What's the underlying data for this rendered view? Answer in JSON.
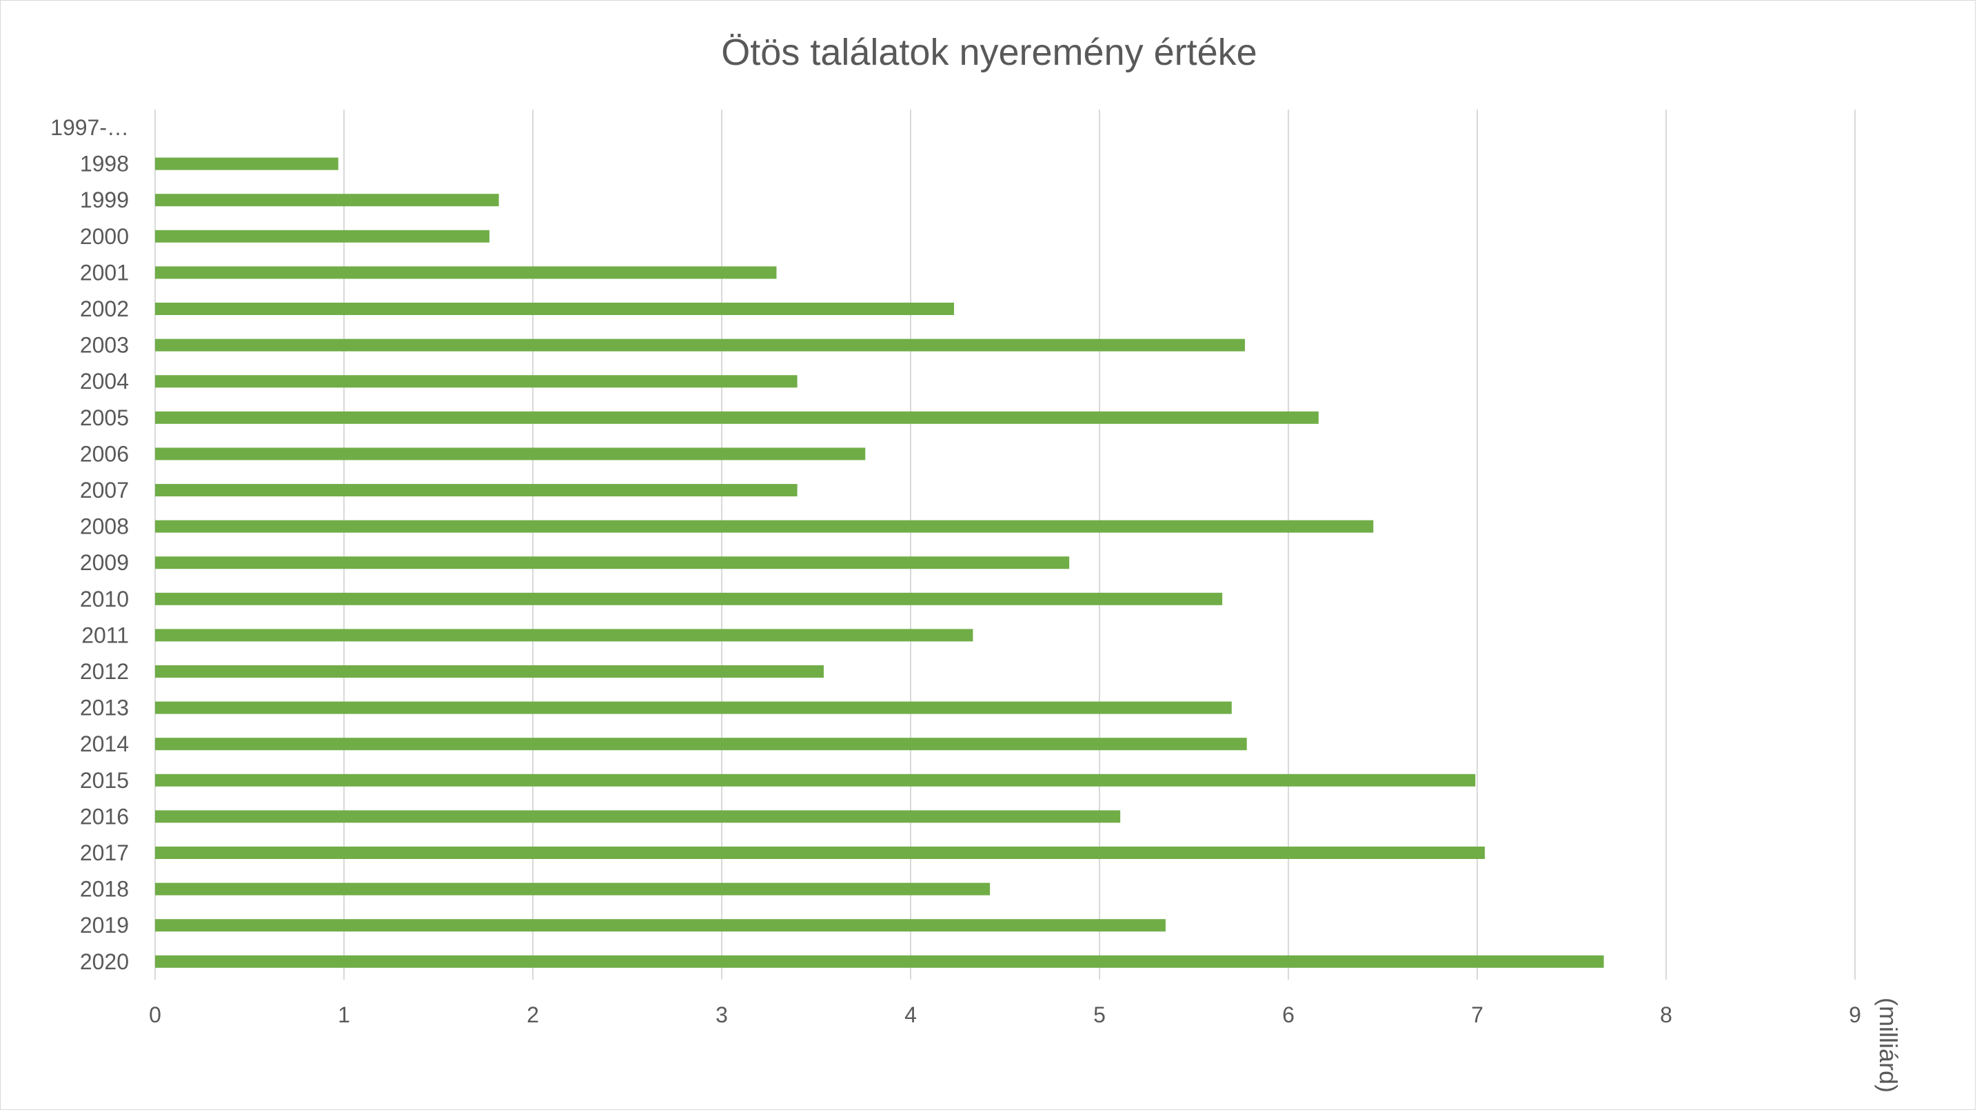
{
  "chart_data": {
    "type": "bar",
    "orientation": "horizontal",
    "title": "Ötös találatok nyeremény értéke",
    "xlabel": "(milliárd)",
    "ylabel": "",
    "xlim": [
      0,
      9
    ],
    "x_ticks": [
      "0",
      "1",
      "2",
      "3",
      "4",
      "5",
      "6",
      "7",
      "8",
      "9"
    ],
    "grid": "vertical",
    "legend": "none",
    "bar_color": "#70ad47",
    "categories": [
      "1997-…",
      "1998",
      "1999",
      "2000",
      "2001",
      "2002",
      "2003",
      "2004",
      "2005",
      "2006",
      "2007",
      "2008",
      "2009",
      "2010",
      "2011",
      "2012",
      "2013",
      "2014",
      "2015",
      "2016",
      "2017",
      "2018",
      "2019",
      "2020"
    ],
    "values": [
      0,
      0.97,
      1.82,
      1.77,
      3.29,
      4.23,
      5.77,
      3.4,
      6.16,
      3.76,
      3.4,
      6.45,
      4.84,
      5.65,
      4.33,
      3.54,
      5.7,
      5.78,
      6.99,
      5.11,
      7.04,
      4.42,
      5.35,
      7.67
    ]
  }
}
